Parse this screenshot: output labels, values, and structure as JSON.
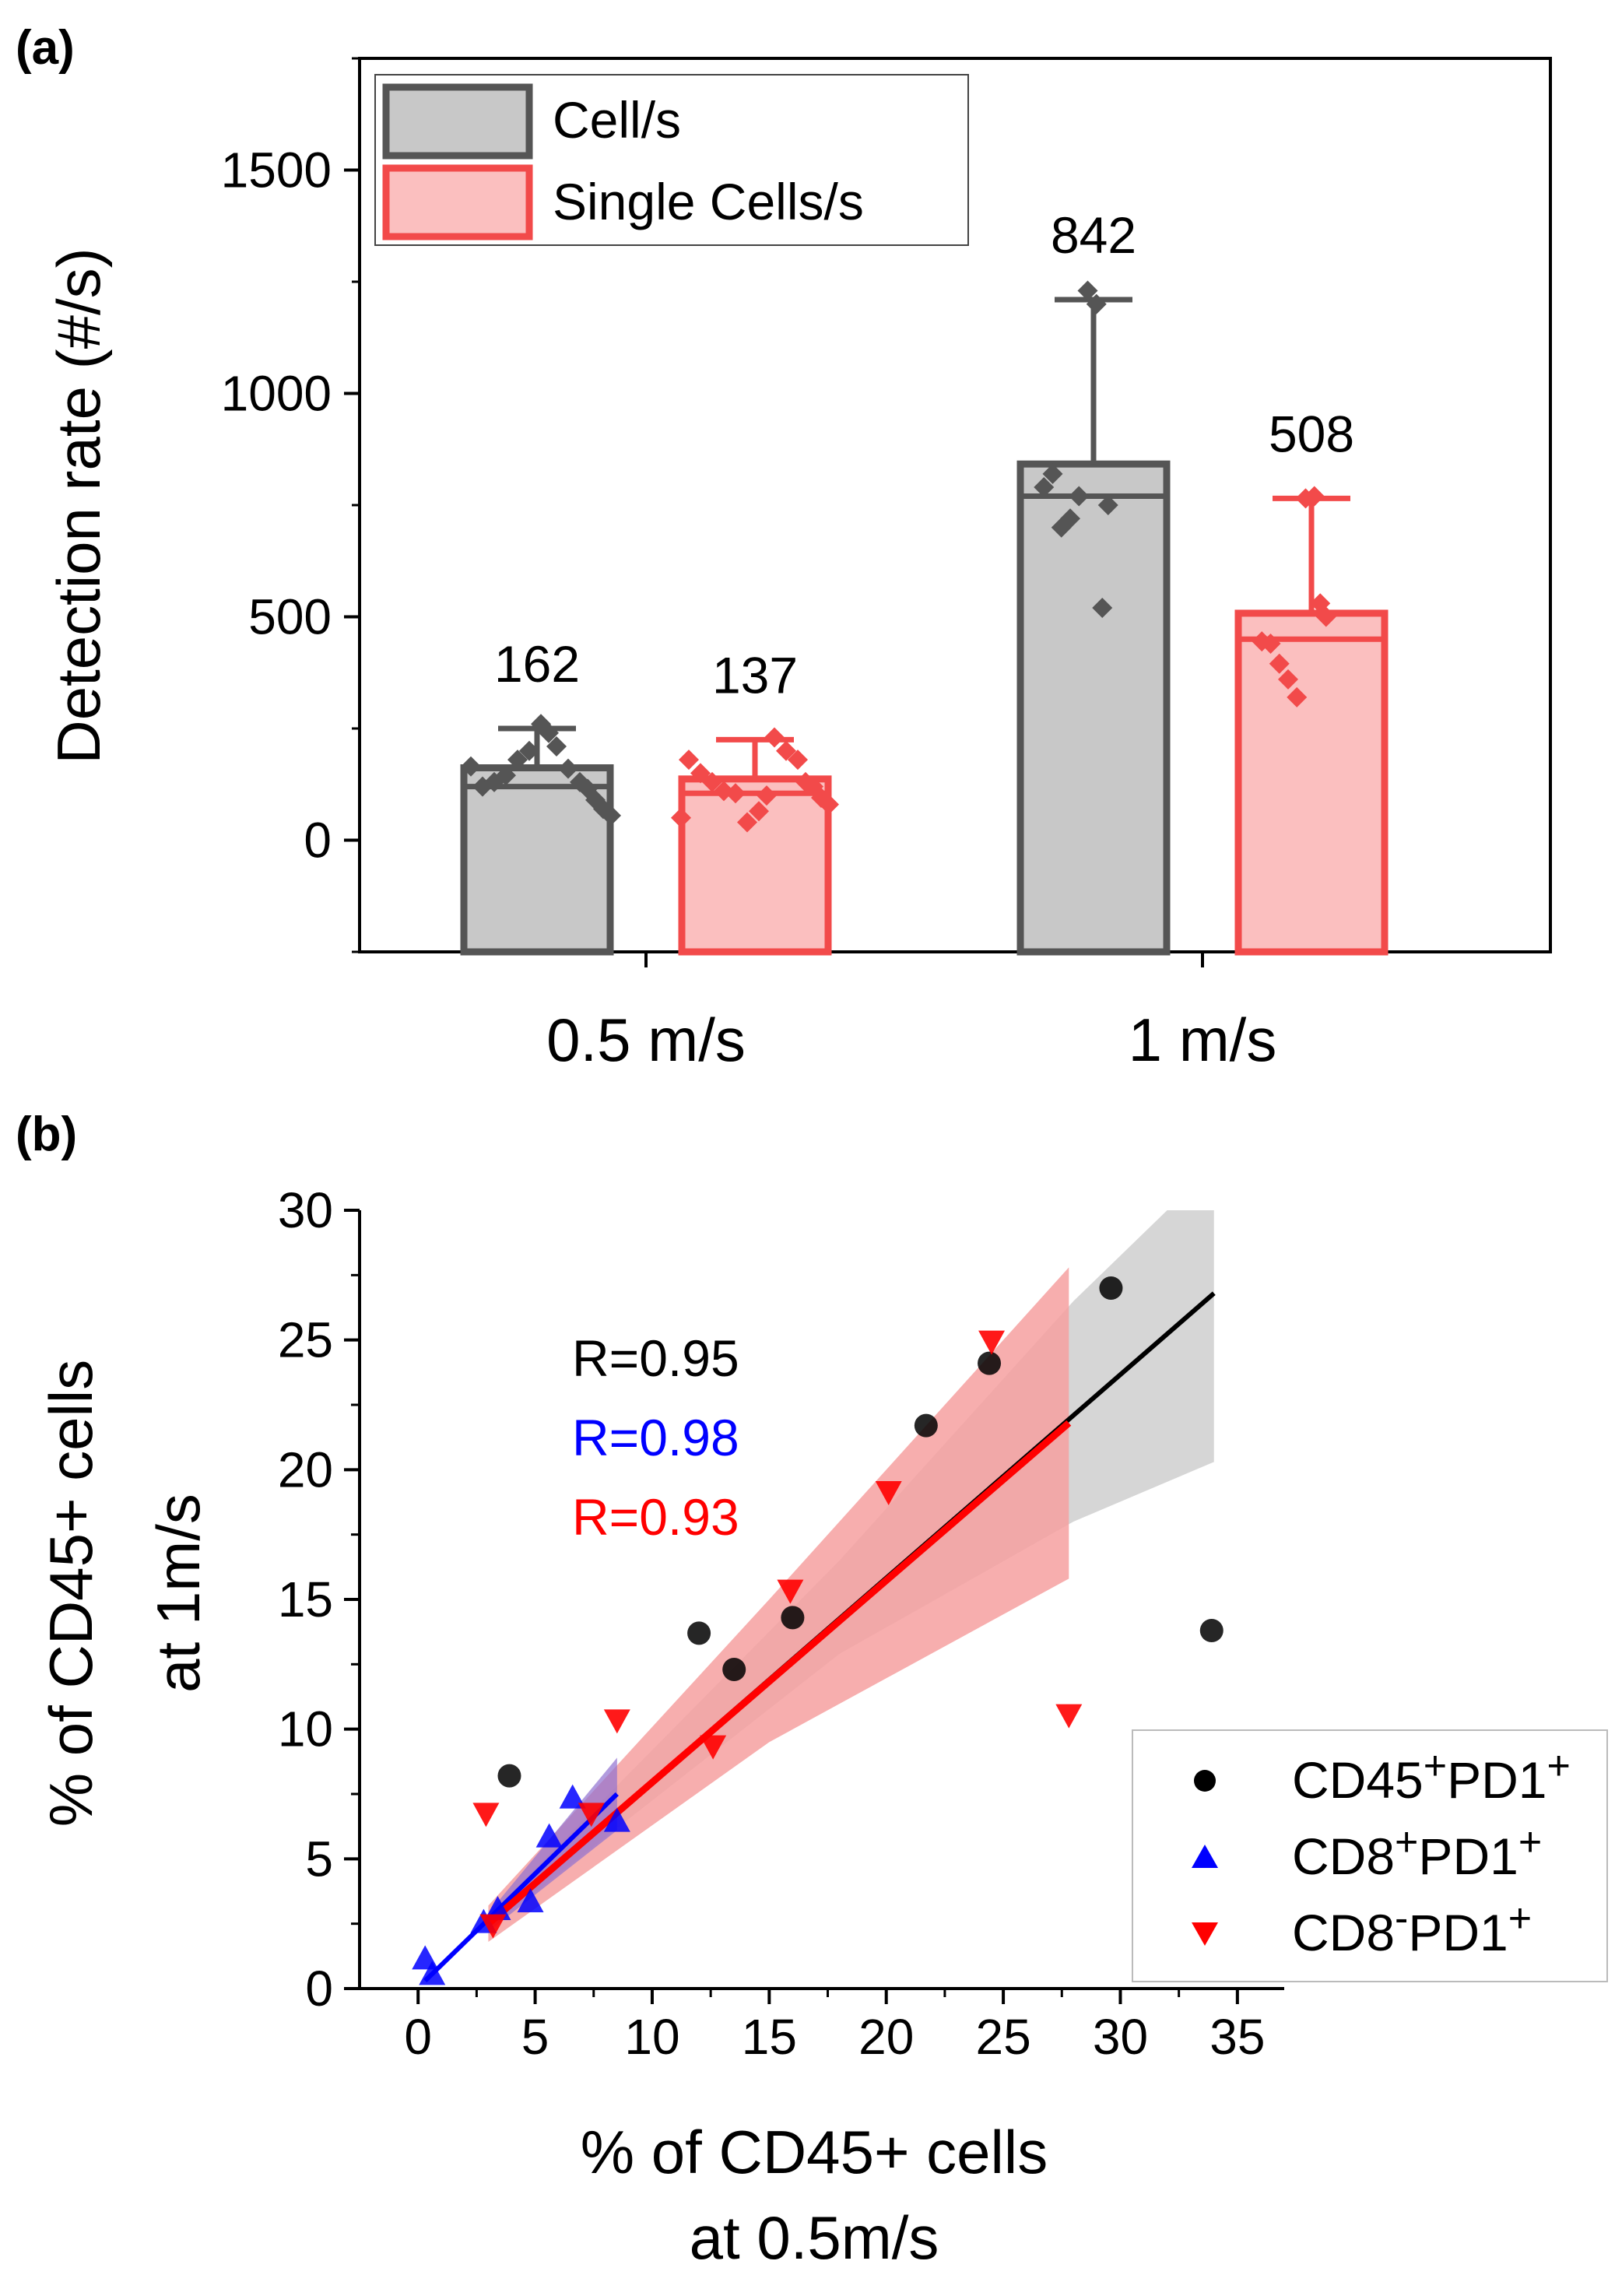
{
  "panel_a_label": "(a)",
  "panel_b_label": "(b)",
  "chart_data": [
    {
      "type": "bar",
      "title": "",
      "xlabel": "",
      "ylabel": "Detection rate (#/s)",
      "ylim": [
        -250,
        1750
      ],
      "yticks": [
        0,
        500,
        1000,
        1500
      ],
      "categories": [
        "0.5 m/s",
        "1 m/s"
      ],
      "series": [
        {
          "name": "Cell/s",
          "values": [
            162,
            842
          ],
          "value_labels": [
            "162",
            "842"
          ],
          "median": [
            120,
            770
          ],
          "err_max": [
            250,
            1210
          ],
          "fill": "#c8c8c8",
          "stroke": "#555555",
          "points": [
            [
              165,
              120,
              130,
              145,
              180,
              200,
              260,
              240,
              210,
              160,
              130,
              115,
              90,
              70,
              55
            ],
            [
              790,
              820,
              700,
              720,
              770,
              1230,
              1200,
              520,
              750
            ]
          ]
        },
        {
          "name": "Single Cells/s",
          "values": [
            137,
            508
          ],
          "value_labels": [
            "137",
            "508"
          ],
          "median": [
            105,
            450
          ],
          "err_max": [
            225,
            765
          ],
          "fill": "#fbbfbf",
          "stroke": "#f24a4a",
          "points": [
            [
              180,
              150,
              130,
              110,
              105,
              40,
              65,
              100,
              230,
              200,
              180,
              130,
              120,
              95,
              80,
              50
            ],
            [
              445,
              440,
              395,
              360,
              320,
              765,
              770,
              530,
              500
            ]
          ]
        }
      ],
      "legend": [
        "Cell/s",
        "Single Cells/s"
      ]
    },
    {
      "type": "scatter",
      "title": "",
      "xlabel_lines": [
        "% of CD45+ cells",
        "at 0.5m/s"
      ],
      "ylabel_lines": [
        "% of CD45+ cells",
        "at 1m/s"
      ],
      "xlim": [
        -2.5,
        37
      ],
      "ylim": [
        0,
        30
      ],
      "xticks": [
        0,
        5,
        10,
        15,
        20,
        25,
        30,
        35
      ],
      "yticks": [
        0,
        5,
        10,
        15,
        20,
        25,
        30
      ],
      "series": [
        {
          "name": "CD45+PD1+",
          "legend_base": "CD45",
          "legend_sup1": "+",
          "legend_mid": "PD1",
          "legend_sup2": "+",
          "marker": "circle",
          "color": "#000000",
          "points": [
            [
              3.9,
              8.2
            ],
            [
              12.0,
              13.7
            ],
            [
              13.5,
              12.3
            ],
            [
              16.0,
              14.3
            ],
            [
              21.7,
              21.7
            ],
            [
              24.4,
              24.1
            ],
            [
              29.6,
              27.0
            ],
            [
              33.9,
              13.8
            ]
          ],
          "fit": [
            [
              3,
              2.5
            ],
            [
              34,
              26.8
            ]
          ],
          "r_label": "R=0.95"
        },
        {
          "name": "CD8+PD1+",
          "legend_base": "CD8",
          "legend_sup1": "+",
          "legend_mid": "PD1",
          "legend_sup2": "+",
          "marker": "triangle-up",
          "color": "#0000ff",
          "points": [
            [
              0.3,
              1.1
            ],
            [
              0.6,
              0.5
            ],
            [
              2.8,
              2.5
            ],
            [
              3.4,
              3.0
            ],
            [
              4.8,
              3.3
            ],
            [
              5.6,
              5.8
            ],
            [
              6.6,
              7.3
            ],
            [
              8.5,
              6.4
            ]
          ],
          "fit": [
            [
              0.3,
              0.3
            ],
            [
              8.5,
              7.5
            ]
          ],
          "r_label": "R=0.98"
        },
        {
          "name": "CD8-PD1+",
          "legend_base": "CD8",
          "legend_sup1": "-",
          "legend_mid": "PD1",
          "legend_sup2": "+",
          "marker": "triangle-down",
          "color": "#ff0000",
          "points": [
            [
              2.9,
              6.8
            ],
            [
              3.2,
              2.5
            ],
            [
              7.4,
              6.8
            ],
            [
              8.5,
              10.4
            ],
            [
              12.6,
              9.4
            ],
            [
              15.9,
              15.4
            ],
            [
              20.1,
              19.2
            ],
            [
              24.5,
              25.0
            ],
            [
              27.8,
              10.6
            ]
          ],
          "fit": [
            [
              3,
              2.5
            ],
            [
              27.8,
              21.8
            ]
          ],
          "r_label": "R=0.93"
        }
      ],
      "bands": [
        {
          "series": "CD45+PD1+",
          "color": "#c8c8c8",
          "lower": [
            [
              3,
              2.3
            ],
            [
              18,
              12.9
            ],
            [
              28,
              18.0
            ],
            [
              34,
              20.3
            ]
          ],
          "upper": [
            [
              34,
              30
            ],
            [
              32,
              30
            ],
            [
              28,
              26.5
            ],
            [
              18,
              16.5
            ],
            [
              3,
              2.8
            ]
          ]
        },
        {
          "series": "CD8-PD1+",
          "color": "#f6a0a0",
          "lower": [
            [
              3,
              1.8
            ],
            [
              15,
              9.5
            ],
            [
              27.8,
              15.8
            ]
          ],
          "upper": [
            [
              27.8,
              27.8
            ],
            [
              15,
              15.0
            ],
            [
              3,
              3.2
            ]
          ]
        },
        {
          "series": "CD8+PD1+",
          "color": "#9070d0",
          "lower": [
            [
              3,
              2.2
            ],
            [
              8.5,
              6.1
            ]
          ],
          "upper": [
            [
              8.5,
              8.9
            ],
            [
              3,
              2.9
            ]
          ]
        }
      ],
      "legend_position": "bottom-right"
    }
  ]
}
